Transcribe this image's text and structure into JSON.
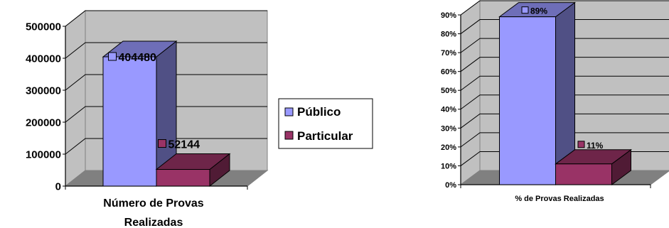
{
  "chart_data": [
    {
      "type": "bar",
      "three_d": true,
      "categories": [
        "Número de Provas Realizadas"
      ],
      "xlabel_lines": [
        "Número de Provas",
        "Realizadas"
      ],
      "series": [
        {
          "name": "Público",
          "values": [
            404480
          ],
          "color": "#9999FF",
          "data_label": "404480"
        },
        {
          "name": "Particular",
          "values": [
            52144
          ],
          "color": "#993366",
          "data_label": "52144"
        }
      ],
      "y_ticks": [
        "0",
        "100000",
        "200000",
        "300000",
        "400000",
        "500000"
      ],
      "ylim": [
        0,
        500000
      ],
      "grid": true,
      "legend": {
        "placement": "right",
        "entries": [
          "Público",
          "Particular"
        ]
      }
    },
    {
      "type": "bar",
      "three_d": true,
      "categories": [
        "% de Provas Realizadas"
      ],
      "xlabel": "% de Provas Realizadas",
      "series": [
        {
          "name": "Público",
          "values": [
            89
          ],
          "color": "#9999FF",
          "data_label": "89%"
        },
        {
          "name": "Particular",
          "values": [
            11
          ],
          "color": "#993366",
          "data_label": "11%"
        }
      ],
      "y_ticks": [
        "0%",
        "10%",
        "20%",
        "30%",
        "40%",
        "50%",
        "60%",
        "70%",
        "80%",
        "90%"
      ],
      "ylim": [
        0,
        90
      ],
      "grid": true
    }
  ]
}
